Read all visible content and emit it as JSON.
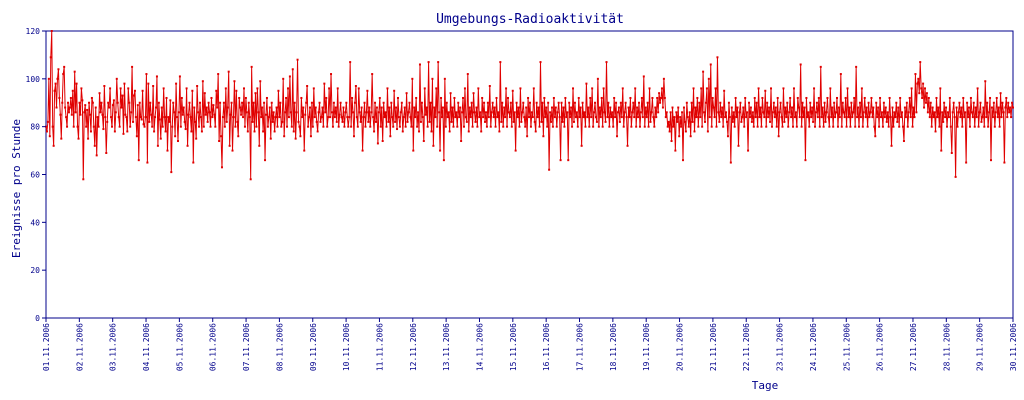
{
  "chart_data": {
    "type": "line",
    "title": "Umgebungs-Radioaktivität",
    "xlabel": "Tage",
    "ylabel": "Ereignisse pro Stunde",
    "ylim": [
      0,
      120
    ],
    "xlim": [
      "01.11.2006",
      "30.11.2006"
    ],
    "yticks": [
      0,
      20,
      40,
      60,
      80,
      100,
      120
    ],
    "xticks": [
      "01.11.2006",
      "02.11.2006",
      "03.11.2006",
      "04.11.2006",
      "05.11.2006",
      "06.11.2006",
      "07.11.2006",
      "08.11.2006",
      "09.11.2006",
      "10.11.2006",
      "11.11.2006",
      "12.11.2006",
      "13.11.2006",
      "14.11.2006",
      "15.11.2006",
      "16.11.2006",
      "17.11.2006",
      "18.11.2006",
      "19.11.2006",
      "20.11.2006",
      "21.11.2006",
      "22.11.2006",
      "23.11.2006",
      "24.11.2006",
      "25.11.2006",
      "26.11.2006",
      "27.11.2006",
      "28.11.2006",
      "29.11.2006",
      "30.11.2006"
    ],
    "grid": false,
    "legend": "none",
    "colors": {
      "series": "#e00000",
      "axes": "#00008b",
      "text": "#00008b"
    },
    "series": [
      {
        "sampling": "hourly",
        "values": [
          80,
          78,
          82,
          100,
          76,
          109,
          120,
          80,
          72,
          95,
          98,
          88,
          100,
          104,
          92,
          85,
          75,
          90,
          102,
          105,
          88,
          84,
          80,
          90,
          86,
          88,
          92,
          85,
          95,
          80,
          103,
          86,
          98,
          80,
          75,
          90,
          85,
          96,
          91,
          58,
          86,
          89,
          80,
          87,
          75,
          90,
          85,
          78,
          92,
          90,
          80,
          72,
          88,
          68,
          84,
          80,
          94,
          86,
          90,
          85,
          79,
          97,
          84,
          69,
          82,
          90,
          88,
          96,
          84,
          80,
          89,
          91,
          78,
          86,
          100,
          90,
          84,
          80,
          96,
          88,
          93,
          77,
          98,
          85,
          84,
          78,
          96,
          90,
          80,
          86,
          105,
          82,
          93,
          95,
          84,
          76,
          89,
          66,
          90,
          84,
          83,
          95,
          81,
          80,
          84,
          102,
          65,
          98,
          82,
          90,
          85,
          80,
          97,
          78,
          84,
          88,
          101,
          72,
          90,
          83,
          75,
          88,
          80,
          96,
          84,
          78,
          92,
          70,
          84,
          82,
          91,
          61,
          80,
          90,
          86,
          76,
          98,
          84,
          74,
          86,
          101,
          80,
          92,
          85,
          88,
          82,
          79,
          96,
          72,
          85,
          90,
          84,
          78,
          95,
          65,
          88,
          82,
          75,
          97,
          86,
          80,
          90,
          84,
          78,
          99,
          80,
          94,
          85,
          88,
          82,
          90,
          86,
          80,
          92,
          84,
          89,
          85,
          80,
          95,
          88,
          102,
          74,
          90,
          76,
          63,
          84,
          90,
          80,
          96,
          82,
          88,
          103,
          72,
          85,
          90,
          70,
          84,
          99,
          80,
          95,
          82,
          76,
          92,
          88,
          85,
          90,
          84,
          96,
          80,
          92,
          86,
          78,
          90,
          84,
          58,
          105,
          82,
          90,
          78,
          94,
          80,
          96,
          86,
          72,
          99,
          84,
          88,
          78,
          90,
          66,
          85,
          92,
          80,
          84,
          88,
          75,
          90,
          82,
          86,
          78,
          84,
          88,
          80,
          95,
          84,
          90,
          80,
          82,
          100,
          76,
          86,
          92,
          80,
          96,
          84,
          101,
          86,
          80,
          104,
          78,
          90,
          75,
          86,
          108,
          82,
          80,
          76,
          92,
          84,
          88,
          70,
          85,
          90,
          97,
          80,
          84,
          88,
          76,
          90,
          80,
          96,
          84,
          88,
          82,
          78,
          86,
          90,
          82,
          84,
          88,
          80,
          98,
          86,
          92,
          80,
          84,
          96,
          84,
          102,
          86,
          80,
          90,
          84,
          88,
          82,
          96,
          80,
          85,
          90,
          84,
          82,
          88,
          80,
          86,
          90,
          84,
          80,
          84,
          107,
          80,
          92,
          86,
          76,
          90,
          97,
          84,
          80,
          96,
          86,
          82,
          88,
          70,
          84,
          90,
          80,
          86,
          95,
          82,
          88,
          80,
          86,
          102,
          84,
          78,
          90,
          82,
          88,
          73,
          86,
          92,
          80,
          88,
          74,
          90,
          84,
          86,
          80,
          96,
          82,
          88,
          76,
          90,
          84,
          80,
          95,
          82,
          88,
          79,
          92,
          84,
          80,
          86,
          90,
          78,
          84,
          88,
          80,
          94,
          82,
          86,
          90,
          84,
          80,
          100,
          70,
          88,
          84,
          92,
          80,
          86,
          78,
          106,
          82,
          90,
          84,
          74,
          96,
          85,
          88,
          80,
          107,
          82,
          90,
          78,
          100,
          72,
          88,
          84,
          96,
          80,
          107,
          86,
          70,
          92,
          84,
          88,
          66,
          100,
          80,
          90,
          84,
          86,
          78,
          94,
          82,
          88,
          80,
          92,
          84,
          86,
          80,
          90,
          84,
          88,
          74,
          86,
          92,
          80,
          96,
          84,
          82,
          102,
          78,
          88,
          84,
          90,
          80,
          94,
          86,
          82,
          88,
          80,
          96,
          84,
          86,
          78,
          92,
          84,
          90,
          82,
          86,
          80,
          90,
          84,
          97,
          80,
          86,
          90,
          84,
          88,
          80,
          92,
          84,
          86,
          78,
          107,
          82,
          90,
          80,
          88,
          84,
          96,
          80,
          92,
          86,
          84,
          90,
          80,
          95,
          82,
          86,
          70,
          90,
          84,
          88,
          80,
          96,
          82,
          86,
          90,
          84,
          80,
          88,
          76,
          92,
          84,
          90,
          80,
          86,
          84,
          96,
          82,
          78,
          90,
          84,
          88,
          80,
          107,
          82,
          90,
          76,
          92,
          84,
          88,
          80,
          90,
          62,
          86,
          82,
          88,
          80,
          92,
          84,
          88,
          80,
          86,
          90,
          84,
          66,
          90,
          82,
          88,
          80,
          92,
          84,
          86,
          66,
          90,
          84,
          88,
          80,
          96,
          82,
          90,
          84,
          86,
          80,
          92,
          84,
          88,
          72,
          90,
          84,
          86,
          80,
          98,
          84,
          88,
          80,
          92,
          84,
          96,
          80,
          86,
          90,
          84,
          82,
          100,
          80,
          88,
          84,
          92,
          80,
          96,
          86,
          82,
          107,
          84,
          90,
          80,
          88,
          84,
          86,
          80,
          92,
          84,
          90,
          76,
          86,
          88,
          82,
          90,
          84,
          96,
          80,
          86,
          90,
          84,
          72,
          88,
          84,
          92,
          80,
          86,
          90,
          84,
          96,
          80,
          88,
          84,
          90,
          80,
          86,
          92,
          84,
          101,
          80,
          88,
          84,
          90,
          80,
          96,
          82,
          86,
          92,
          84,
          80,
          88,
          84,
          92,
          86,
          94,
          90,
          92,
          96,
          88,
          100,
          92,
          84,
          86,
          80,
          82,
          78,
          86,
          74,
          88,
          80,
          84,
          70,
          86,
          82,
          88,
          76,
          84,
          80,
          86,
          66,
          88,
          82,
          78,
          90,
          84,
          80,
          86,
          76,
          90,
          82,
          96,
          78,
          88,
          84,
          92,
          80,
          90,
          84,
          96,
          80,
          103,
          86,
          82,
          90,
          96,
          78,
          100,
          84,
          106,
          80,
          92,
          88,
          84,
          96,
          80,
          109,
          86,
          82,
          90,
          84,
          88,
          80,
          95,
          84,
          86,
          82,
          76,
          90,
          84,
          65,
          88,
          82,
          86,
          80,
          92,
          84,
          88,
          72,
          86,
          90,
          82,
          84,
          88,
          80,
          92,
          84,
          86,
          70,
          90,
          84,
          88,
          82,
          86,
          80,
          92,
          84,
          90,
          80,
          96,
          84,
          88,
          80,
          92,
          86,
          84,
          95,
          80,
          90,
          84,
          88,
          82,
          96,
          80,
          86,
          90,
          84,
          88,
          80,
          92,
          76,
          86,
          90,
          84,
          80,
          96,
          82,
          88,
          84,
          90,
          80,
          86,
          92,
          84,
          88,
          80,
          96,
          84,
          86,
          80,
          92,
          88,
          84,
          106,
          80,
          90,
          84,
          88,
          66,
          92,
          84,
          86,
          80,
          90,
          84,
          88,
          82,
          96,
          80,
          86,
          90,
          84,
          92,
          80,
          105,
          84,
          88,
          80,
          90,
          82,
          86,
          92,
          84,
          80,
          96,
          84,
          88,
          80,
          90,
          84,
          86,
          92,
          80,
          88,
          84,
          102,
          80,
          90,
          86,
          84,
          92,
          80,
          96,
          84,
          88,
          80,
          90,
          84,
          86,
          92,
          80,
          105,
          84,
          88,
          80,
          90,
          84,
          96,
          80,
          86,
          92,
          84,
          88,
          80,
          90,
          84,
          86,
          92,
          84,
          88,
          80,
          76,
          90,
          84,
          88,
          80,
          92,
          84,
          86,
          80,
          90,
          84,
          88,
          82,
          86,
          80,
          92,
          84,
          72,
          88,
          80,
          86,
          84,
          90,
          82,
          88,
          80,
          92,
          84,
          86,
          80,
          74,
          88,
          84,
          90,
          80,
          86,
          92,
          84,
          96,
          80,
          88,
          84,
          102,
          86,
          98,
          100,
          94,
          107,
          96,
          92,
          98,
          88,
          96,
          90,
          94,
          86,
          92,
          84,
          90,
          80,
          88,
          84,
          86,
          78,
          92,
          84,
          88,
          80,
          96,
          70,
          86,
          82,
          90,
          84,
          88,
          80,
          86,
          84,
          92,
          80,
          69,
          86,
          90,
          84,
          59,
          88,
          80,
          86,
          90,
          84,
          88,
          80,
          92,
          84,
          86,
          65,
          90,
          84,
          88,
          80,
          92,
          86,
          84,
          90,
          80,
          88,
          84,
          96,
          80,
          86,
          90,
          82,
          84,
          88,
          80,
          99,
          84,
          90,
          80,
          86,
          92,
          66,
          88,
          84,
          90,
          80,
          86,
          92,
          84,
          88,
          80,
          94,
          84,
          90,
          86,
          65,
          88,
          92,
          84,
          90,
          86,
          88,
          84,
          90,
          88
        ]
      }
    ]
  }
}
